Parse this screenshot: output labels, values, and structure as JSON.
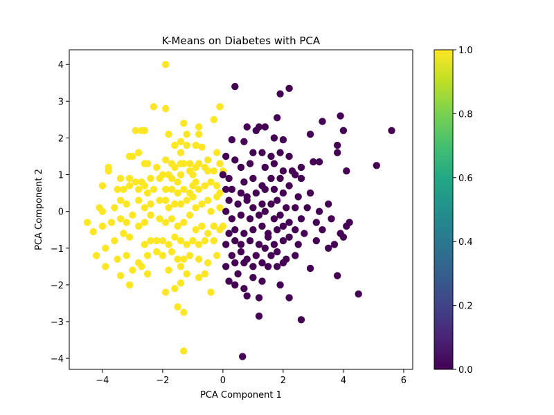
{
  "chart_data": {
    "type": "scatter",
    "title": "K-Means on Diabetes with PCA",
    "xlabel": "PCA Component 1",
    "ylabel": "PCA Component 2",
    "xlim": [
      -5.1,
      6.3
    ],
    "ylim": [
      -4.3,
      4.4
    ],
    "x_ticks": [
      -4,
      -2,
      0,
      2,
      4,
      6
    ],
    "y_ticks": [
      -4,
      -3,
      -2,
      -1,
      0,
      1,
      2,
      3,
      4
    ],
    "x_tick_labels": [
      "−4",
      "−2",
      "0",
      "2",
      "4",
      "6"
    ],
    "y_tick_labels": [
      "−4",
      "−3",
      "−2",
      "−1",
      "0",
      "1",
      "2",
      "3",
      "4"
    ],
    "grid": false,
    "colormap": "viridis",
    "colorbar": {
      "range": [
        0.0,
        1.0
      ],
      "ticks": [
        0.0,
        0.2,
        0.4,
        0.6,
        0.8,
        1.0
      ],
      "tick_labels": [
        "0.0",
        "0.2",
        "0.4",
        "0.6",
        "0.8",
        "1.0"
      ]
    },
    "colors": {
      "cluster_0": "#440154",
      "cluster_1": "#fde725"
    },
    "series": [
      {
        "color_value": 1.0,
        "points": [
          [
            -1.9,
            4.0
          ],
          [
            -2.9,
            2.2
          ],
          [
            -2.7,
            2.2
          ],
          [
            -2.3,
            2.85
          ],
          [
            -1.9,
            2.8
          ],
          [
            -1.3,
            2.4
          ],
          [
            -2.6,
            2.2
          ],
          [
            -1.8,
            2.1
          ],
          [
            -1.2,
            2.1
          ],
          [
            -0.8,
            2.3
          ],
          [
            -0.3,
            2.5
          ],
          [
            -0.1,
            2.85
          ],
          [
            -0.8,
            2.1
          ],
          [
            -2.8,
            1.6
          ],
          [
            -3.1,
            1.5
          ],
          [
            -3.0,
            1.5
          ],
          [
            -2.6,
            1.3
          ],
          [
            -2.5,
            1.3
          ],
          [
            -2.2,
            1.2
          ],
          [
            -1.9,
            1.4
          ],
          [
            -1.7,
            1.3
          ],
          [
            -1.6,
            1.2
          ],
          [
            -1.4,
            1.3
          ],
          [
            -1.3,
            1.3
          ],
          [
            -1.1,
            1.3
          ],
          [
            -1.0,
            1.0
          ],
          [
            -0.8,
            1.3
          ],
          [
            -0.5,
            1.4
          ],
          [
            -1.4,
            1.6
          ],
          [
            -1.6,
            1.8
          ],
          [
            -1.2,
            1.8
          ],
          [
            -1.4,
            1.9
          ],
          [
            -0.9,
            1.8
          ],
          [
            -0.7,
            1.75
          ],
          [
            -0.2,
            1.6
          ],
          [
            -0.1,
            1.3
          ],
          [
            0.0,
            1.1
          ],
          [
            -0.3,
            1.1
          ],
          [
            -0.5,
            1.1
          ],
          [
            -0.6,
            1.2
          ],
          [
            -0.9,
            1.2
          ],
          [
            -1.1,
            1.1
          ],
          [
            -3.8,
            1.2
          ],
          [
            -3.8,
            1.1
          ],
          [
            -3.4,
            0.9
          ],
          [
            -3.1,
            0.9
          ],
          [
            -2.9,
            0.8
          ],
          [
            -2.7,
            0.8
          ],
          [
            -2.4,
            0.9
          ],
          [
            -2.1,
            0.9
          ],
          [
            -2.0,
            1.0
          ],
          [
            -1.8,
            1.0
          ],
          [
            -1.7,
            0.9
          ],
          [
            -1.5,
            0.8
          ],
          [
            -1.4,
            1.0
          ],
          [
            -0.9,
            0.8
          ],
          [
            -0.8,
            0.6
          ],
          [
            -0.6,
            0.7
          ],
          [
            -0.4,
            0.8
          ],
          [
            -0.2,
            0.7
          ],
          [
            -0.1,
            0.5
          ],
          [
            -4.0,
            0.7
          ],
          [
            -3.5,
            0.6
          ],
          [
            -3.3,
            0.6
          ],
          [
            -3.1,
            0.7
          ],
          [
            -2.8,
            0.6
          ],
          [
            -2.6,
            0.7
          ],
          [
            -2.5,
            0.5
          ],
          [
            -2.3,
            0.6
          ],
          [
            -1.9,
            0.6
          ],
          [
            -1.7,
            0.6
          ],
          [
            -1.5,
            0.5
          ],
          [
            -1.3,
            0.6
          ],
          [
            -1.1,
            0.5
          ],
          [
            -1.0,
            0.7
          ],
          [
            -4.1,
            0.1
          ],
          [
            -4.0,
            0.0
          ],
          [
            -3.6,
            0.1
          ],
          [
            -3.4,
            0.3
          ],
          [
            -3.2,
            0.2
          ],
          [
            -2.8,
            0.3
          ],
          [
            -2.6,
            0.1
          ],
          [
            -2.4,
            0.2
          ],
          [
            -2.1,
            0.3
          ],
          [
            -1.9,
            0.3
          ],
          [
            -1.8,
            0.1
          ],
          [
            -1.6,
            0.2
          ],
          [
            -1.4,
            0.2
          ],
          [
            -1.2,
            0.3
          ],
          [
            -1.0,
            0.4
          ],
          [
            -0.9,
            0.1
          ],
          [
            -0.7,
            0.2
          ],
          [
            -0.5,
            0.3
          ],
          [
            -0.4,
            0.0
          ],
          [
            -0.2,
            0.4
          ],
          [
            -0.1,
            0.1
          ],
          [
            0.0,
            -0.4
          ],
          [
            -4.5,
            -0.3
          ],
          [
            -4.3,
            -0.55
          ],
          [
            -4.0,
            -0.4
          ],
          [
            -3.7,
            -0.3
          ],
          [
            -3.4,
            -0.2
          ],
          [
            -3.2,
            -0.3
          ],
          [
            -3.0,
            -0.1
          ],
          [
            -2.8,
            -0.4
          ],
          [
            -2.6,
            -0.3
          ],
          [
            -2.4,
            -0.1
          ],
          [
            -2.1,
            -0.2
          ],
          [
            -1.9,
            -0.3
          ],
          [
            -1.7,
            -0.2
          ],
          [
            -1.5,
            -0.4
          ],
          [
            -1.3,
            -0.3
          ],
          [
            -1.1,
            -0.1
          ],
          [
            -0.9,
            -0.5
          ],
          [
            -0.7,
            -0.4
          ],
          [
            -0.5,
            -0.6
          ],
          [
            -0.3,
            -0.4
          ],
          [
            -0.1,
            -0.5
          ],
          [
            -4.2,
            -1.2
          ],
          [
            -3.9,
            -1.0
          ],
          [
            -3.6,
            -0.8
          ],
          [
            -3.3,
            -0.6
          ],
          [
            -3.1,
            -0.7
          ],
          [
            -2.6,
            -0.9
          ],
          [
            -2.4,
            -0.8
          ],
          [
            -2.2,
            -0.8
          ],
          [
            -2.0,
            -0.8
          ],
          [
            -1.8,
            -0.9
          ],
          [
            -1.6,
            -0.7
          ],
          [
            -1.4,
            -0.8
          ],
          [
            -1.2,
            -0.9
          ],
          [
            -1.0,
            -0.8
          ],
          [
            -0.8,
            -0.9
          ],
          [
            -0.6,
            -0.8
          ],
          [
            -0.3,
            -0.8
          ],
          [
            -3.9,
            -1.5
          ],
          [
            -3.5,
            -1.3
          ],
          [
            -3.2,
            -1.2
          ],
          [
            -2.8,
            -1.4
          ],
          [
            -2.5,
            -1.2
          ],
          [
            -2.2,
            -1.1
          ],
          [
            -2.0,
            -1.2
          ],
          [
            -1.7,
            -1.1
          ],
          [
            -1.5,
            -1.3
          ],
          [
            -1.3,
            -1.3
          ],
          [
            -1.1,
            -1.2
          ],
          [
            -0.8,
            -1.3
          ],
          [
            -0.5,
            -1.4
          ],
          [
            -0.2,
            -1.2
          ],
          [
            -3.4,
            -1.75
          ],
          [
            -3.0,
            -1.6
          ],
          [
            -2.7,
            -1.5
          ],
          [
            -2.5,
            -1.7
          ],
          [
            -1.8,
            -1.6
          ],
          [
            -1.4,
            -1.5
          ],
          [
            -1.2,
            -1.7
          ],
          [
            -0.8,
            -1.8
          ],
          [
            -0.6,
            -1.7
          ],
          [
            -3.1,
            -2.0
          ],
          [
            -1.9,
            -2.2
          ],
          [
            -1.6,
            -2.1
          ],
          [
            -1.4,
            -1.95
          ],
          [
            -0.4,
            -2.2
          ],
          [
            -1.5,
            -2.6
          ],
          [
            -1.3,
            -2.75
          ],
          [
            -1.3,
            -3.8
          ]
        ]
      },
      {
        "color_value": 0.0,
        "points": [
          [
            0.4,
            3.4
          ],
          [
            2.2,
            3.35
          ],
          [
            1.9,
            3.2
          ],
          [
            1.2,
            2.3
          ],
          [
            1.4,
            2.3
          ],
          [
            1.8,
            2.55
          ],
          [
            3.9,
            2.6
          ],
          [
            3.3,
            2.45
          ],
          [
            4.0,
            2.2
          ],
          [
            5.6,
            2.2
          ],
          [
            0.8,
            2.3
          ],
          [
            1.1,
            2.2
          ],
          [
            2.0,
            1.95
          ],
          [
            1.7,
            2.0
          ],
          [
            2.9,
            2.1
          ],
          [
            3.8,
            1.8
          ],
          [
            0.3,
            1.95
          ],
          [
            0.7,
            1.9
          ],
          [
            1.0,
            1.6
          ],
          [
            1.3,
            1.6
          ],
          [
            1.6,
            1.5
          ],
          [
            1.9,
            1.6
          ],
          [
            2.2,
            1.5
          ],
          [
            3.8,
            1.6
          ],
          [
            0.1,
            1.5
          ],
          [
            0.4,
            1.4
          ],
          [
            0.6,
            1.2
          ],
          [
            0.9,
            1.3
          ],
          [
            1.4,
            1.2
          ],
          [
            1.7,
            1.3
          ],
          [
            2.0,
            1.1
          ],
          [
            2.3,
            1.1
          ],
          [
            2.6,
            1.2
          ],
          [
            3.0,
            1.35
          ],
          [
            3.2,
            1.35
          ],
          [
            4.1,
            1.1
          ],
          [
            5.1,
            1.25
          ],
          [
            0.0,
            1.0
          ],
          [
            0.2,
            0.9
          ],
          [
            0.7,
            0.8
          ],
          [
            1.0,
            0.9
          ],
          [
            1.3,
            0.7
          ],
          [
            1.6,
            0.9
          ],
          [
            1.9,
            0.9
          ],
          [
            2.2,
            0.7
          ],
          [
            2.4,
            1.0
          ],
          [
            2.6,
            0.9
          ],
          [
            0.1,
            0.6
          ],
          [
            0.3,
            0.6
          ],
          [
            0.6,
            0.5
          ],
          [
            0.8,
            0.4
          ],
          [
            1.1,
            0.5
          ],
          [
            1.4,
            0.6
          ],
          [
            1.7,
            0.6
          ],
          [
            2.0,
            0.5
          ],
          [
            2.5,
            0.4
          ],
          [
            2.9,
            0.5
          ],
          [
            0.2,
            0.3
          ],
          [
            0.5,
            0.2
          ],
          [
            0.8,
            0.3
          ],
          [
            1.0,
            0.1
          ],
          [
            1.3,
            0.2
          ],
          [
            1.6,
            0.2
          ],
          [
            1.8,
            0.3
          ],
          [
            2.1,
            0.1
          ],
          [
            2.4,
            0.1
          ],
          [
            2.8,
            0.1
          ],
          [
            3.2,
            0.0
          ],
          [
            3.5,
            0.2
          ],
          [
            0.1,
            0.0
          ],
          [
            0.3,
            -0.2
          ],
          [
            0.6,
            -0.1
          ],
          [
            0.9,
            -0.2
          ],
          [
            1.2,
            -0.1
          ],
          [
            1.4,
            0.0
          ],
          [
            1.7,
            -0.2
          ],
          [
            1.9,
            -0.1
          ],
          [
            2.2,
            -0.3
          ],
          [
            2.6,
            -0.2
          ],
          [
            3.1,
            -0.3
          ],
          [
            3.6,
            -0.2
          ],
          [
            4.1,
            -0.4
          ],
          [
            4.2,
            -0.3
          ],
          [
            0.2,
            -0.6
          ],
          [
            0.4,
            -0.5
          ],
          [
            0.7,
            -0.6
          ],
          [
            1.0,
            -0.5
          ],
          [
            1.3,
            -0.4
          ],
          [
            1.5,
            -0.6
          ],
          [
            1.8,
            -0.5
          ],
          [
            2.0,
            -0.4
          ],
          [
            2.4,
            -0.5
          ],
          [
            2.7,
            -0.6
          ],
          [
            3.3,
            -0.5
          ],
          [
            3.9,
            -0.6
          ],
          [
            0.1,
            -0.9
          ],
          [
            0.4,
            -0.8
          ],
          [
            0.6,
            -0.9
          ],
          [
            0.9,
            -0.8
          ],
          [
            1.2,
            -0.9
          ],
          [
            1.5,
            -0.7
          ],
          [
            1.7,
            -0.9
          ],
          [
            2.0,
            -0.8
          ],
          [
            2.2,
            -0.7
          ],
          [
            2.5,
            -0.9
          ],
          [
            3.1,
            -0.8
          ],
          [
            3.7,
            -0.9
          ],
          [
            4.0,
            -0.7
          ],
          [
            0.3,
            -1.2
          ],
          [
            0.6,
            -1.1
          ],
          [
            0.8,
            -1.3
          ],
          [
            1.1,
            -1.2
          ],
          [
            1.4,
            -1.0
          ],
          [
            1.6,
            -1.2
          ],
          [
            1.8,
            -1.1
          ],
          [
            2.1,
            -1.3
          ],
          [
            2.4,
            -1.2
          ],
          [
            3.5,
            -1.0
          ],
          [
            0.1,
            -1.5
          ],
          [
            0.4,
            -1.4
          ],
          [
            0.7,
            -1.4
          ],
          [
            1.0,
            -1.5
          ],
          [
            1.3,
            -1.4
          ],
          [
            1.5,
            -1.5
          ],
          [
            1.8,
            -1.5
          ],
          [
            2.0,
            -1.4
          ],
          [
            2.9,
            -1.55
          ],
          [
            0.2,
            -1.9
          ],
          [
            0.5,
            -1.7
          ],
          [
            0.7,
            -2.1
          ],
          [
            1.0,
            -1.8
          ],
          [
            1.3,
            -1.9
          ],
          [
            1.9,
            -2.0
          ],
          [
            3.8,
            -1.75
          ],
          [
            0.4,
            -2.0
          ],
          [
            0.8,
            -2.3
          ],
          [
            1.2,
            -2.35
          ],
          [
            2.2,
            -2.35
          ],
          [
            4.5,
            -2.25
          ],
          [
            1.2,
            -2.85
          ],
          [
            2.6,
            -2.95
          ],
          [
            0.65,
            -3.95
          ]
        ]
      }
    ]
  }
}
